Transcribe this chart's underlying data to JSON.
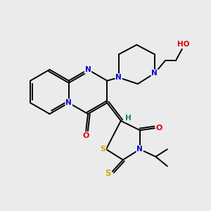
{
  "bg_color": "#ebebeb",
  "atom_colors": {
    "C": "#000000",
    "N": "#0000cc",
    "O": "#dd0000",
    "S": "#ccaa00",
    "H": "#008080"
  },
  "bond_color": "#000000",
  "lw": 1.4,
  "fontsize": 7.5
}
